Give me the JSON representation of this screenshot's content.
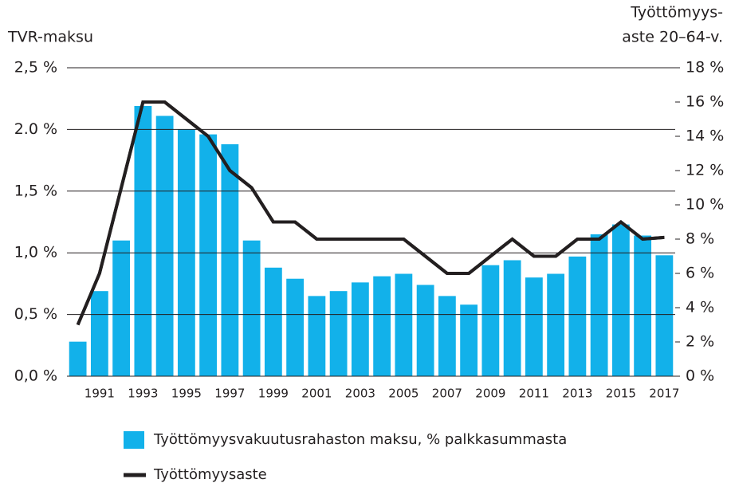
{
  "chart_data": {
    "type": "bar_line",
    "y_label": "TVR-maksu",
    "y2_label": [
      "Työttömyys-",
      "aste 20–64-v."
    ],
    "categories": [
      null,
      "1991",
      null,
      "1993",
      null,
      "1995",
      null,
      "1997",
      null,
      "1999",
      null,
      "2001",
      null,
      "2003",
      null,
      "2005",
      null,
      "2007",
      null,
      "2009",
      null,
      "2011",
      null,
      "2013",
      null,
      "2015",
      null,
      "2017"
    ],
    "series": [
      {
        "name": "Työttömyysvakuutusrahaston maksu, % palkkasummasta",
        "type": "bar",
        "color": "#12b1ea",
        "values": [
          0.28,
          0.69,
          1.1,
          2.19,
          2.11,
          2.0,
          1.96,
          1.88,
          1.1,
          0.88,
          0.79,
          0.65,
          0.69,
          0.76,
          0.81,
          0.83,
          0.74,
          0.65,
          0.58,
          0.9,
          0.94,
          0.8,
          0.83,
          0.97,
          1.15,
          1.23,
          1.14,
          0.98
        ]
      },
      {
        "name": "Työttömyysaste",
        "type": "line",
        "axis": "y2",
        "color": "#231f20",
        "values": [
          3,
          6,
          11,
          16,
          16,
          15,
          14,
          12,
          11,
          9,
          9,
          8,
          8,
          8,
          8,
          8,
          7,
          6,
          6,
          7,
          8,
          7,
          7,
          8,
          8,
          9,
          8,
          8.1
        ]
      }
    ],
    "ylim": [
      0,
      2.5
    ],
    "yticks": [
      {
        "value": 0,
        "label": "0,0 %"
      },
      {
        "value": 0.5,
        "label": "0,5 %"
      },
      {
        "value": 1,
        "label": "1,0 %"
      },
      {
        "value": 1.5,
        "label": "1,5 %"
      },
      {
        "value": 2,
        "label": "2.0 %"
      },
      {
        "value": 2.5,
        "label": "2,5 %"
      }
    ],
    "y2lim": [
      0,
      18
    ],
    "y2ticks": [
      {
        "value": 0,
        "label": "0 %"
      },
      {
        "value": 2,
        "label": "2 %"
      },
      {
        "value": 4,
        "label": "4 %"
      },
      {
        "value": 6,
        "label": "6 %"
      },
      {
        "value": 8,
        "label": "8 %"
      },
      {
        "value": 10,
        "label": "10 %"
      },
      {
        "value": 12,
        "label": "12 %"
      },
      {
        "value": 14,
        "label": "14 %"
      },
      {
        "value": 16,
        "label": "16 %"
      },
      {
        "value": 18,
        "label": "18 %"
      }
    ],
    "grid": true,
    "legend": "bottom-left"
  }
}
